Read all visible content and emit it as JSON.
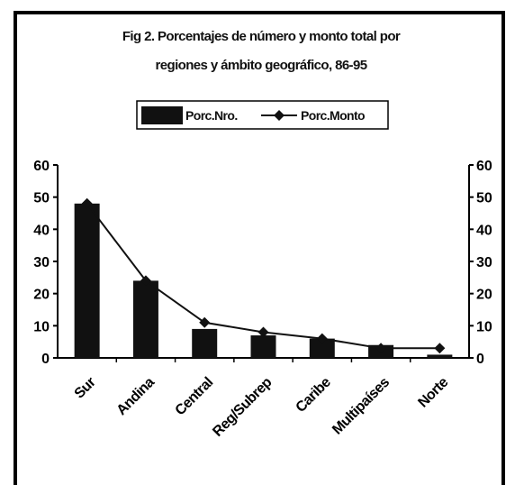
{
  "chart_data": {
    "type": "bar",
    "title": "Fig 2. Porcentajes de número y monto total por regiones y ámbito geográfico, 86-95",
    "title_lines": [
      "Fig 2. Porcentajes de número y monto total por",
      "regiones y ámbito geográfico, 86-95"
    ],
    "categories": [
      "Sur",
      "Andina",
      "Central",
      "Reg/Subrep",
      "Caribe",
      "Multipaíses",
      "Norte"
    ],
    "series": [
      {
        "name": "Porc.Nro.",
        "type": "bar",
        "values": [
          48,
          24,
          9,
          7,
          6,
          4,
          1
        ]
      },
      {
        "name": "Porc.Monto",
        "type": "line",
        "marker": "diamond",
        "values": [
          48,
          24,
          11,
          8,
          6,
          3,
          3
        ]
      }
    ],
    "ylim": [
      0,
      60
    ],
    "yticks": [
      0,
      10,
      20,
      30,
      40,
      50,
      60
    ],
    "secondary_ylim": [
      0,
      60
    ],
    "legend_position": "top-center",
    "grid": false,
    "colors": {
      "bar": "#111111",
      "line": "#111111",
      "background": "#ffffff"
    }
  }
}
